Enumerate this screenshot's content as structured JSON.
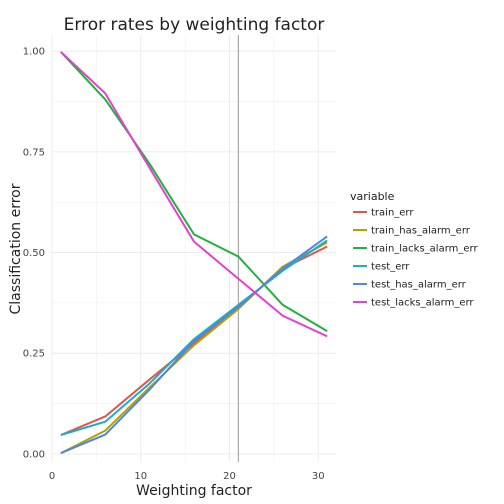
{
  "chart_data": {
    "type": "line",
    "title": "Error rates by weighting factor",
    "xlabel": "Weighting factor",
    "ylabel": "Classification error",
    "xlim": [
      0,
      32
    ],
    "ylim": [
      -0.02,
      1.04
    ],
    "x_ticks": [
      0,
      10,
      20,
      30
    ],
    "y_ticks": [
      0.0,
      0.25,
      0.5,
      0.75,
      1.0
    ],
    "x_tick_labels": [
      "0",
      "10",
      "20",
      "30"
    ],
    "y_tick_labels": [
      "0.00",
      "0.25",
      "0.50",
      "0.75",
      "1.00"
    ],
    "grid": true,
    "vline": 21,
    "legend": {
      "title": "variable",
      "position": "right"
    },
    "x": [
      1,
      6,
      11,
      16,
      21,
      26,
      31
    ],
    "series": [
      {
        "name": "train_err",
        "color": "#e4534b",
        "values": [
          0.047,
          0.093,
          0.185,
          0.275,
          0.365,
          0.46,
          0.515
        ]
      },
      {
        "name": "train_has_alarm_err",
        "color": "#b79f00",
        "values": [
          0.002,
          0.058,
          0.165,
          0.27,
          0.36,
          0.465,
          0.525
        ]
      },
      {
        "name": "train_lacks_alarm_err",
        "color": "#1fb33a",
        "values": [
          0.998,
          0.88,
          0.72,
          0.545,
          0.49,
          0.37,
          0.305
        ]
      },
      {
        "name": "test_err",
        "color": "#1aafc4",
        "values": [
          0.047,
          0.08,
          0.175,
          0.285,
          0.37,
          0.455,
          0.53
        ]
      },
      {
        "name": "test_has_alarm_err",
        "color": "#4d86e6",
        "values": [
          0.002,
          0.048,
          0.16,
          0.28,
          0.365,
          0.46,
          0.54
        ]
      },
      {
        "name": "test_lacks_alarm_err",
        "color": "#e341d1",
        "values": [
          0.998,
          0.895,
          0.71,
          0.527,
          0.435,
          0.343,
          0.292
        ]
      }
    ],
    "vline_color": "#a8a8a8",
    "grid_color": "#ececec"
  }
}
